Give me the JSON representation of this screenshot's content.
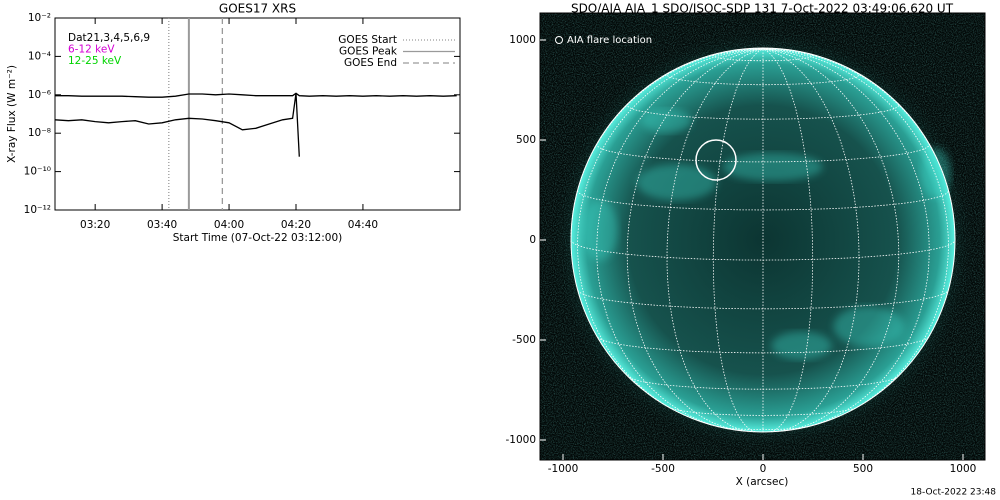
{
  "chart_data": [
    {
      "type": "line",
      "title": "GOES17 XRS",
      "xlabel": "Start Time (07-Oct-22 03:12:00)",
      "ylabel": "X-ray Flux (W m⁻²)",
      "log": true,
      "x": [
        "03:08",
        "03:12",
        "03:16",
        "03:20",
        "03:24",
        "03:28",
        "03:32",
        "03:36",
        "03:40",
        "03:44",
        "03:48",
        "03:52",
        "03:56",
        "04:00",
        "04:04",
        "04:08",
        "04:12",
        "04:16",
        "04:19",
        "04:20",
        "04:21",
        "04:24",
        "04:28",
        "04:32",
        "04:36",
        "04:40",
        "04:44",
        "04:48",
        "04:52",
        "04:56",
        "05:00",
        "05:04",
        "05:08"
      ],
      "series": [
        {
          "color": "#000000",
          "values": [
            9e-07,
            9e-07,
            8.5e-07,
            8.5e-07,
            8.5e-07,
            8.5e-07,
            8e-07,
            7.5e-07,
            7.5e-07,
            8.5e-07,
            1.1e-06,
            1.1e-06,
            1e-06,
            1.1e-06,
            1e-06,
            9e-07,
            9e-07,
            9e-07,
            9e-07,
            1.2e-06,
            9e-07,
            8.5e-07,
            9e-07,
            8.5e-07,
            9e-07,
            8.5e-07,
            9e-07,
            8.5e-07,
            9e-07,
            8.5e-07,
            9e-07,
            8.5e-07,
            9e-07
          ]
        },
        {
          "color": "#000000",
          "values": [
            5e-08,
            4.5e-08,
            5e-08,
            4e-08,
            3.5e-08,
            4e-08,
            4.5e-08,
            3e-08,
            3.5e-08,
            5e-08,
            6e-08,
            5.5e-08,
            4.5e-08,
            3.5e-08,
            1.5e-08,
            1.8e-08,
            3e-08,
            5e-08,
            6e-08,
            1.2e-06,
            6e-10,
            null,
            null,
            null,
            null,
            null,
            null,
            null,
            null,
            null,
            null,
            null,
            null
          ]
        }
      ],
      "annotations": [
        {
          "text": "Dat21,3,4,5,6,9",
          "color": "#000000"
        },
        {
          "text": "6-12 keV",
          "color": "#d400d4"
        },
        {
          "text": "12-25 keV",
          "color": "#00d400"
        }
      ],
      "events": [
        {
          "name": "GOES Start",
          "x": "03:42",
          "style": "dotted",
          "color": "#9a9a9a"
        },
        {
          "name": "GOES Peak",
          "x": "03:48",
          "style": "solid",
          "color": "#9a9a9a"
        },
        {
          "name": "GOES End",
          "x": "03:58",
          "style": "dashed",
          "color": "#9a9a9a"
        }
      ],
      "xlim": [
        "03:08",
        "05:09"
      ],
      "xticks": [
        "03:20",
        "03:40",
        "04:00",
        "04:20",
        "04:40"
      ],
      "ylim": [
        1e-12,
        0.01
      ],
      "yticks": [
        {
          "value": 1e-12,
          "label": "10⁻¹²"
        },
        {
          "value": 1e-10,
          "label": "10⁻¹⁰"
        },
        {
          "value": 1e-08,
          "label": "10⁻⁸"
        },
        {
          "value": 1e-06,
          "label": "10⁻⁶"
        },
        {
          "value": 0.0001,
          "label": "10⁻⁴"
        },
        {
          "value": 0.01,
          "label": "10⁻²"
        }
      ]
    },
    {
      "type": "image",
      "title": "SDO/AIA AIA_1 SDO/JSOC-SDP 131  7-Oct-2022 03:49:06.620 UT",
      "xlabel": "X (arcsec)",
      "legend": "AIA flare location",
      "footer": "18-Oct-2022 23:48",
      "solar_radius": 960,
      "flare_location": {
        "x": -235,
        "y": 400,
        "radius": 100
      },
      "color": "#3fe0d0",
      "xlim": [
        -1115,
        1110
      ],
      "xticks": [
        -1000,
        -500,
        0,
        500,
        1000
      ],
      "ylim": [
        -1100,
        1175
      ],
      "yticks": [
        -1000,
        -500,
        0,
        500,
        1000
      ]
    }
  ]
}
